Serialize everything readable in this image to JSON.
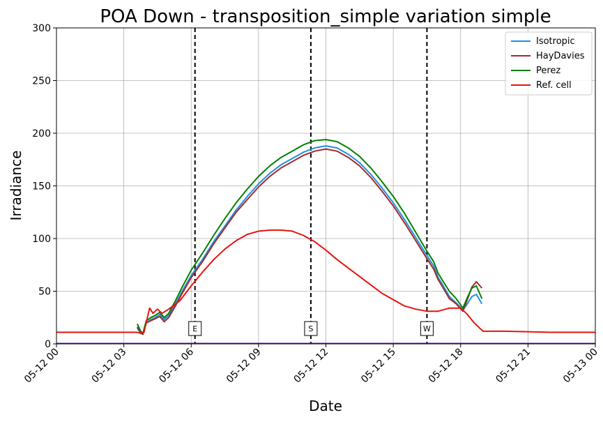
{
  "chart_data": {
    "type": "line",
    "title": "POA Down - transposition_simple variation simple",
    "xlabel": "Date",
    "ylabel": "Irradiance",
    "ylim": [
      0,
      300
    ],
    "xlim_hours": [
      0,
      24
    ],
    "grid": true,
    "legend_position": "top-right",
    "x_ticks": [
      {
        "hour": 0,
        "label": "05-12 00"
      },
      {
        "hour": 3,
        "label": "05-12 03"
      },
      {
        "hour": 6,
        "label": "05-12 06"
      },
      {
        "hour": 9,
        "label": "05-12 09"
      },
      {
        "hour": 12,
        "label": "05-12 12"
      },
      {
        "hour": 15,
        "label": "05-12 15"
      },
      {
        "hour": 18,
        "label": "05-12 18"
      },
      {
        "hour": 21,
        "label": "05-12 21"
      },
      {
        "hour": 24,
        "label": "05-13 00"
      }
    ],
    "y_ticks": [
      0,
      50,
      100,
      150,
      200,
      250,
      300
    ],
    "vertical_markers": [
      {
        "hour": 6.17,
        "label": "E",
        "color": "#000000"
      },
      {
        "hour": 11.33,
        "label": "S",
        "color": "#000000"
      },
      {
        "hour": 16.5,
        "label": "W",
        "color": "#000000"
      }
    ],
    "series": [
      {
        "name": "Isotropic",
        "color": "#1f8fe6",
        "points": [
          [
            3.6,
            15
          ],
          [
            3.75,
            10
          ],
          [
            3.85,
            9
          ],
          [
            4.0,
            20
          ],
          [
            4.2,
            23
          ],
          [
            4.4,
            25
          ],
          [
            4.6,
            28
          ],
          [
            4.8,
            23
          ],
          [
            5.0,
            27
          ],
          [
            5.3,
            38
          ],
          [
            5.6,
            50
          ],
          [
            6.0,
            65
          ],
          [
            6.5,
            80
          ],
          [
            7.0,
            97
          ],
          [
            7.5,
            112
          ],
          [
            8.0,
            127
          ],
          [
            8.5,
            140
          ],
          [
            9.0,
            152
          ],
          [
            9.5,
            162
          ],
          [
            10.0,
            170
          ],
          [
            10.5,
            176
          ],
          [
            11.0,
            182
          ],
          [
            11.5,
            186
          ],
          [
            12.0,
            188
          ],
          [
            12.5,
            186
          ],
          [
            13.0,
            180
          ],
          [
            13.5,
            172
          ],
          [
            14.0,
            161
          ],
          [
            14.5,
            148
          ],
          [
            15.0,
            134
          ],
          [
            15.5,
            118
          ],
          [
            16.0,
            101
          ],
          [
            16.5,
            84
          ],
          [
            16.8,
            74
          ],
          [
            17.0,
            63
          ],
          [
            17.2,
            56
          ],
          [
            17.5,
            45
          ],
          [
            17.8,
            39
          ],
          [
            18.1,
            32
          ],
          [
            18.3,
            38
          ],
          [
            18.5,
            45
          ],
          [
            18.7,
            47
          ],
          [
            18.95,
            38
          ]
        ]
      },
      {
        "name": "HayDavies",
        "color": "#a52a2a",
        "points": [
          [
            3.6,
            16
          ],
          [
            3.75,
            11
          ],
          [
            3.85,
            9
          ],
          [
            4.0,
            20
          ],
          [
            4.2,
            22
          ],
          [
            4.4,
            24
          ],
          [
            4.6,
            26
          ],
          [
            4.8,
            21
          ],
          [
            5.0,
            25
          ],
          [
            5.3,
            36
          ],
          [
            5.6,
            48
          ],
          [
            6.0,
            63
          ],
          [
            6.5,
            78
          ],
          [
            7.0,
            95
          ],
          [
            7.5,
            110
          ],
          [
            8.0,
            125
          ],
          [
            8.5,
            137
          ],
          [
            9.0,
            149
          ],
          [
            9.5,
            159
          ],
          [
            10.0,
            167
          ],
          [
            10.5,
            173
          ],
          [
            11.0,
            179
          ],
          [
            11.5,
            183
          ],
          [
            12.0,
            185
          ],
          [
            12.5,
            183
          ],
          [
            13.0,
            177
          ],
          [
            13.5,
            169
          ],
          [
            14.0,
            158
          ],
          [
            14.5,
            145
          ],
          [
            15.0,
            131
          ],
          [
            15.5,
            115
          ],
          [
            16.0,
            98
          ],
          [
            16.5,
            81
          ],
          [
            16.8,
            71
          ],
          [
            17.0,
            61
          ],
          [
            17.2,
            54
          ],
          [
            17.5,
            43
          ],
          [
            17.8,
            38
          ],
          [
            18.1,
            31
          ],
          [
            18.3,
            42
          ],
          [
            18.5,
            54
          ],
          [
            18.7,
            59
          ],
          [
            18.95,
            53
          ]
        ]
      },
      {
        "name": "Perez",
        "color": "#008000",
        "points": [
          [
            3.6,
            19
          ],
          [
            3.75,
            12
          ],
          [
            3.85,
            10
          ],
          [
            4.0,
            22
          ],
          [
            4.2,
            25
          ],
          [
            4.4,
            27
          ],
          [
            4.6,
            30
          ],
          [
            4.8,
            25
          ],
          [
            5.0,
            29
          ],
          [
            5.3,
            41
          ],
          [
            5.6,
            54
          ],
          [
            6.0,
            70
          ],
          [
            6.5,
            86
          ],
          [
            7.0,
            103
          ],
          [
            7.5,
            119
          ],
          [
            8.0,
            134
          ],
          [
            8.5,
            147
          ],
          [
            9.0,
            159
          ],
          [
            9.5,
            169
          ],
          [
            10.0,
            177
          ],
          [
            10.5,
            183
          ],
          [
            11.0,
            189
          ],
          [
            11.5,
            193
          ],
          [
            12.0,
            194
          ],
          [
            12.5,
            192
          ],
          [
            13.0,
            186
          ],
          [
            13.5,
            178
          ],
          [
            14.0,
            167
          ],
          [
            14.5,
            154
          ],
          [
            15.0,
            140
          ],
          [
            15.5,
            124
          ],
          [
            16.0,
            106
          ],
          [
            16.5,
            88
          ],
          [
            16.8,
            78
          ],
          [
            17.0,
            67
          ],
          [
            17.2,
            60
          ],
          [
            17.5,
            50
          ],
          [
            17.8,
            43
          ],
          [
            18.1,
            34
          ],
          [
            18.3,
            44
          ],
          [
            18.5,
            53
          ],
          [
            18.7,
            55
          ],
          [
            18.95,
            43
          ]
        ]
      },
      {
        "name": "Ref. cell",
        "color": "#e8120f",
        "points": [
          [
            0,
            11
          ],
          [
            1,
            11
          ],
          [
            2,
            11
          ],
          [
            3,
            11
          ],
          [
            3.6,
            11
          ],
          [
            3.75,
            10
          ],
          [
            3.9,
            11
          ],
          [
            4.05,
            25
          ],
          [
            4.15,
            34
          ],
          [
            4.3,
            29
          ],
          [
            4.5,
            33
          ],
          [
            4.7,
            29
          ],
          [
            5.0,
            33
          ],
          [
            5.5,
            41
          ],
          [
            6.0,
            55
          ],
          [
            6.5,
            68
          ],
          [
            7.0,
            80
          ],
          [
            7.5,
            90
          ],
          [
            8.0,
            98
          ],
          [
            8.5,
            104
          ],
          [
            9.0,
            107
          ],
          [
            9.5,
            108
          ],
          [
            10.0,
            108
          ],
          [
            10.5,
            107
          ],
          [
            11.0,
            103
          ],
          [
            11.5,
            97
          ],
          [
            12.0,
            89
          ],
          [
            12.5,
            80
          ],
          [
            13.0,
            72
          ],
          [
            13.5,
            64
          ],
          [
            14.0,
            56
          ],
          [
            14.5,
            48
          ],
          [
            15.0,
            42
          ],
          [
            15.5,
            36
          ],
          [
            16.0,
            33
          ],
          [
            16.5,
            31
          ],
          [
            17.0,
            31
          ],
          [
            17.5,
            34
          ],
          [
            18.0,
            34
          ],
          [
            18.3,
            28
          ],
          [
            18.6,
            20
          ],
          [
            18.85,
            15
          ],
          [
            19.0,
            12
          ],
          [
            20,
            12
          ],
          [
            21,
            11.5
          ],
          [
            22,
            11
          ],
          [
            23,
            11
          ],
          [
            24,
            11
          ]
        ]
      }
    ]
  }
}
